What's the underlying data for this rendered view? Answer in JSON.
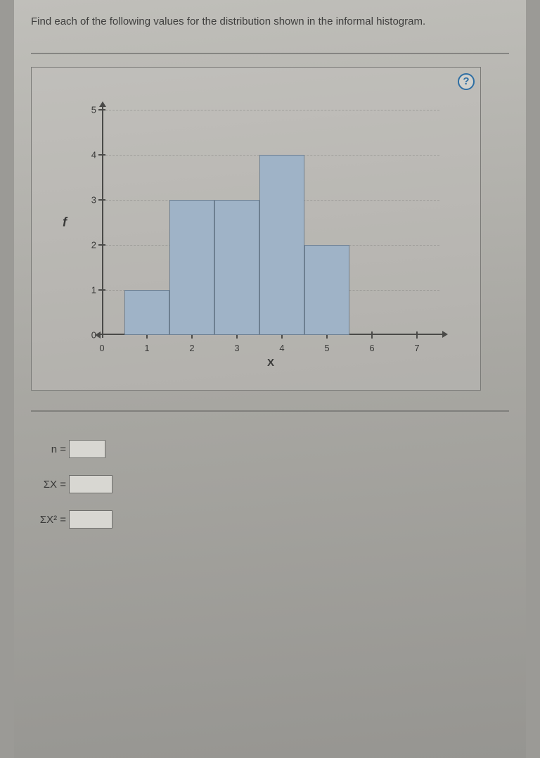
{
  "prompt": "Find each of the following values for the distribution shown in the informal histogram.",
  "help_label": "?",
  "chart": {
    "type": "histogram",
    "x_title": "X",
    "y_title": "f",
    "x_ticks": [
      0,
      1,
      2,
      3,
      4,
      5,
      6,
      7
    ],
    "y_ticks": [
      0,
      1,
      2,
      3,
      4,
      5
    ],
    "xlim": [
      0,
      7.5
    ],
    "ylim": [
      0,
      5
    ],
    "bars": [
      {
        "x0": 0.5,
        "x1": 1.5,
        "height": 1
      },
      {
        "x0": 1.5,
        "x1": 2.5,
        "height": 3
      },
      {
        "x0": 2.5,
        "x1": 3.5,
        "height": 3
      },
      {
        "x0": 3.5,
        "x1": 4.5,
        "height": 4
      },
      {
        "x0": 4.5,
        "x1": 5.5,
        "height": 2
      }
    ],
    "bar_fill": "#9fb3c7",
    "bar_stroke": "#6d7f91",
    "grid_color": "#8c8c89",
    "axis_color": "#4a4a48",
    "background": "transparent"
  },
  "answers": {
    "n": {
      "label": "n =",
      "value": ""
    },
    "sx": {
      "label": "ΣX =",
      "value": ""
    },
    "sx2": {
      "label": "ΣX² =",
      "value": ""
    }
  }
}
